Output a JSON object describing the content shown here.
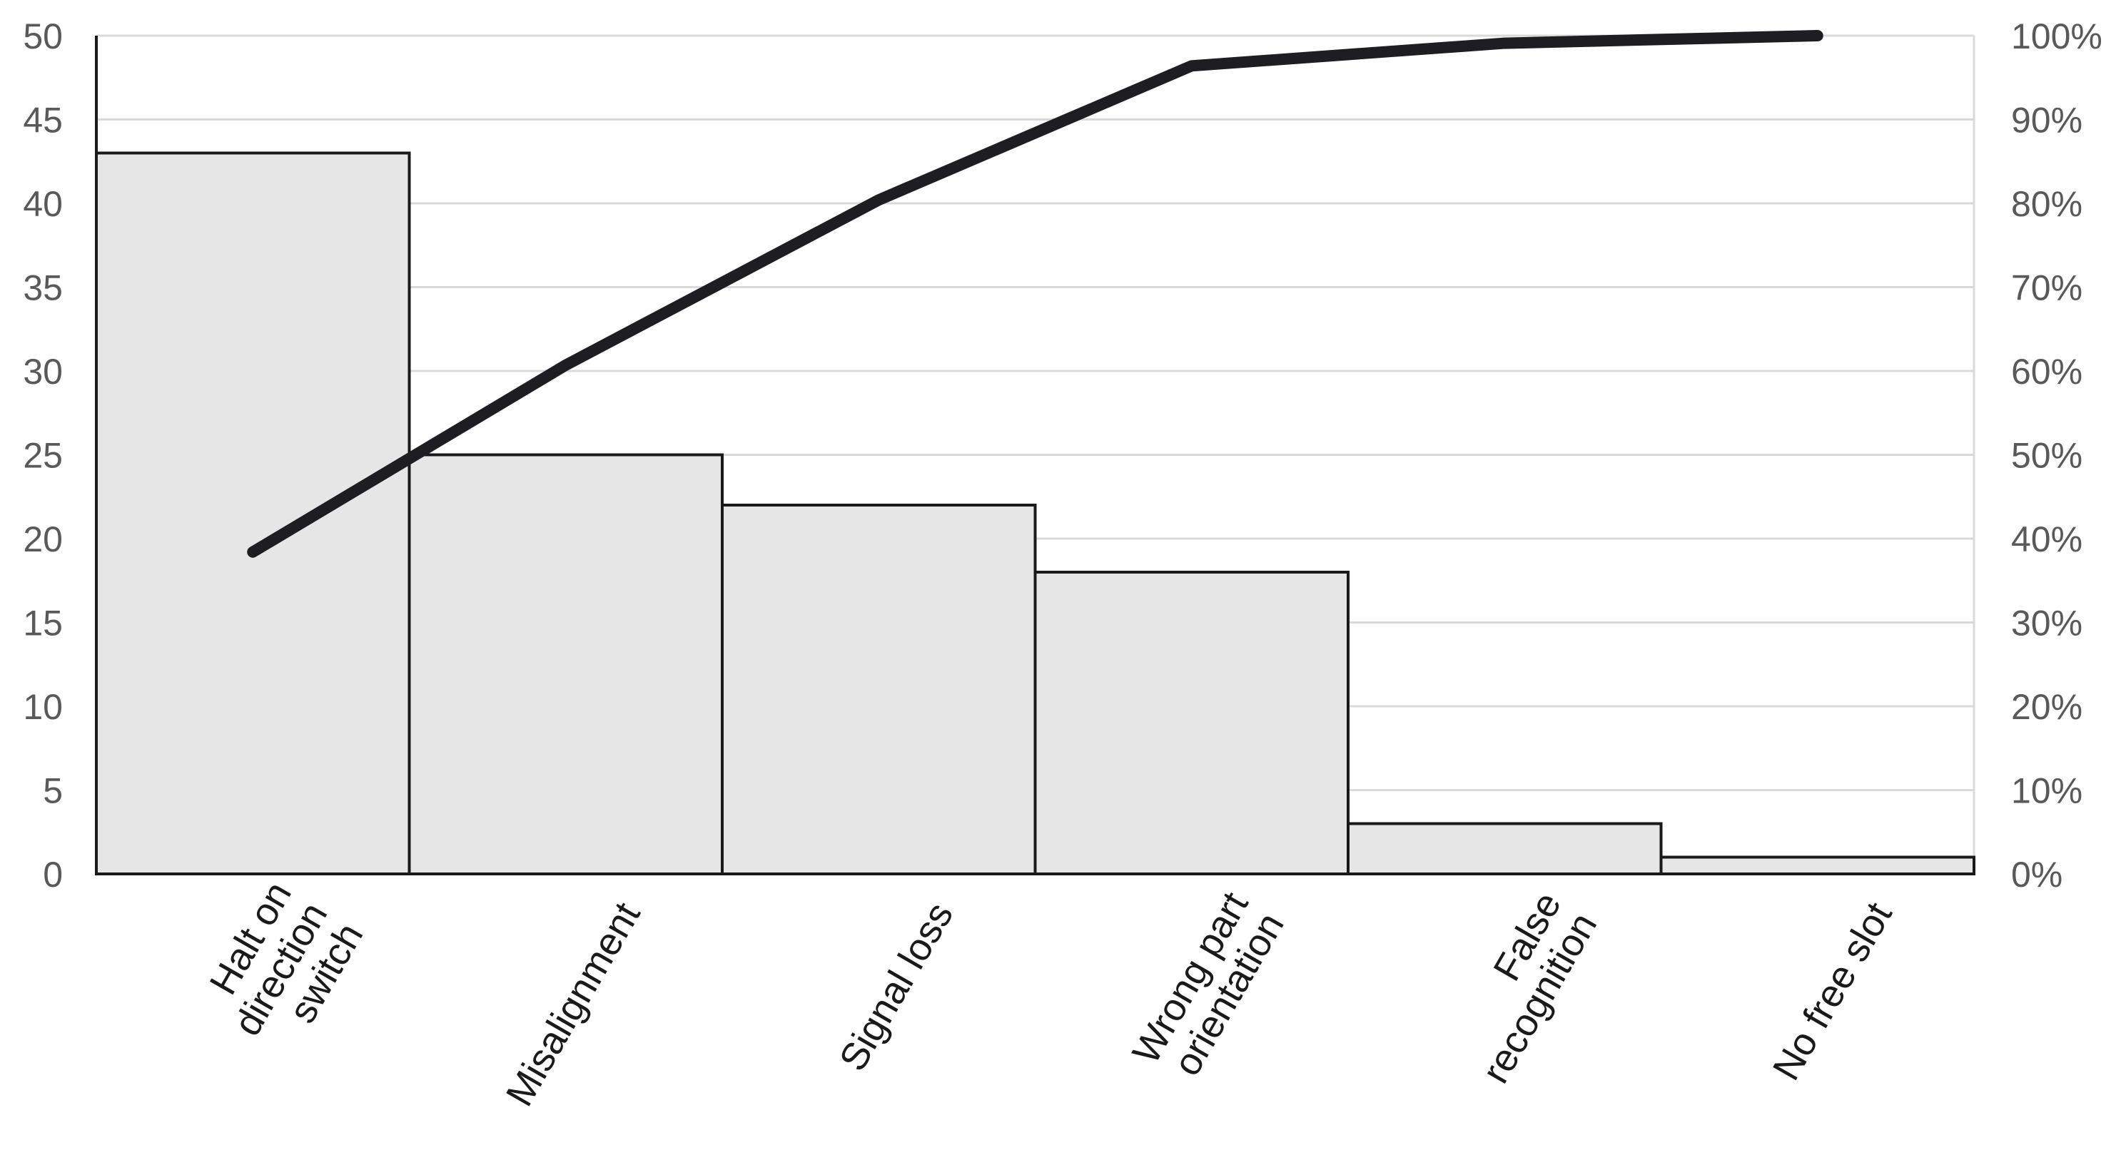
{
  "chart_data": {
    "type": "bar",
    "categories": [
      [
        "Halt on",
        "direction",
        "switch"
      ],
      [
        "Misalignment"
      ],
      [
        "Signal loss"
      ],
      [
        "Wrong part",
        "orientation"
      ],
      [
        "False",
        "recognition"
      ],
      [
        "No free slot"
      ]
    ],
    "values": [
      43,
      25,
      22,
      18,
      3,
      1
    ],
    "cumulative_percent": [
      38.4,
      60.7,
      80.4,
      96.4,
      99.1,
      100
    ],
    "ylim": [
      0,
      50
    ],
    "y_ticks": [
      "0",
      "5",
      "10",
      "15",
      "20",
      "25",
      "30",
      "35",
      "40",
      "45",
      "50"
    ],
    "y2lim": [
      0,
      100
    ],
    "y2_ticks": [
      "0%",
      "10%",
      "20%",
      "30%",
      "40%",
      "50%",
      "60%",
      "70%",
      "80%",
      "90%",
      "100%"
    ],
    "title": "",
    "xlabel": "",
    "ylabel": "",
    "grid": true,
    "legend": "none",
    "colors": {
      "bar_fill": "#e6e6e6",
      "bar_stroke": "#1a1a1a",
      "line": "#1d1d22",
      "grid": "#d9d9d9",
      "tick_text": "#595959"
    }
  }
}
